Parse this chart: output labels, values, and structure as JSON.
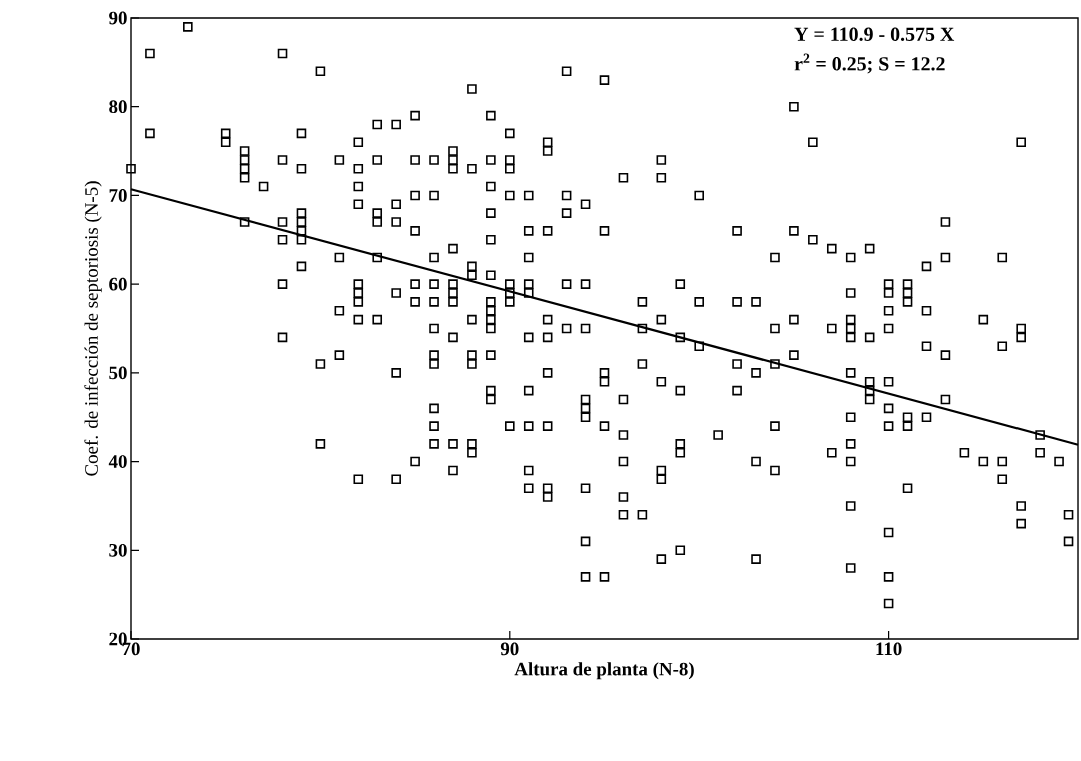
{
  "chart_data": {
    "type": "scatter",
    "xlabel": "Altura de planta (N-8)",
    "ylabel": "Coef. de infección de septoriosis (N-5)",
    "annotations": [
      "Y = 110.9 - 0.575 X",
      "r$^{2}$ = 0.25;    S = 12.2"
    ],
    "xlim": [
      70,
      120
    ],
    "ylim": [
      20,
      90
    ],
    "xticks": [
      70,
      90,
      110
    ],
    "yticks": [
      20,
      30,
      40,
      50,
      60,
      70,
      80,
      90
    ],
    "series": [
      {
        "color": "#000000",
        "marker": "square",
        "x": [
          70,
          71,
          71,
          73,
          75,
          75,
          76,
          76,
          76,
          76,
          76,
          77,
          78,
          78,
          78,
          78,
          78,
          78,
          79,
          79,
          79,
          79,
          79,
          79,
          79,
          80,
          80,
          80,
          81,
          81,
          81,
          81,
          82,
          82,
          82,
          82,
          82,
          82,
          82,
          82,
          82,
          83,
          83,
          83,
          83,
          83,
          83,
          84,
          84,
          84,
          84,
          84,
          84,
          85,
          85,
          85,
          85,
          85,
          85,
          85,
          86,
          86,
          86,
          86,
          86,
          86,
          86,
          86,
          86,
          86,
          86,
          87,
          87,
          87,
          87,
          87,
          87,
          87,
          87,
          87,
          87,
          88,
          88,
          88,
          88,
          88,
          88,
          88,
          88,
          88,
          89,
          89,
          89,
          89,
          89,
          89,
          89,
          89,
          89,
          89,
          89,
          89,
          89,
          90,
          90,
          90,
          90,
          90,
          90,
          90,
          90,
          91,
          91,
          91,
          91,
          91,
          91,
          91,
          91,
          91,
          91,
          92,
          92,
          92,
          92,
          92,
          92,
          92,
          92,
          92,
          93,
          93,
          93,
          93,
          93,
          94,
          94,
          94,
          94,
          94,
          94,
          94,
          94,
          94,
          95,
          95,
          95,
          95,
          95,
          95,
          96,
          96,
          96,
          96,
          96,
          96,
          97,
          97,
          97,
          97,
          98,
          98,
          98,
          98,
          98,
          98,
          98,
          99,
          99,
          99,
          99,
          99,
          99,
          100,
          100,
          100,
          101,
          102,
          102,
          102,
          102,
          103,
          103,
          103,
          103,
          104,
          104,
          104,
          104,
          104,
          105,
          105,
          105,
          105,
          106,
          106,
          107,
          107,
          107,
          108,
          108,
          108,
          108,
          108,
          108,
          108,
          108,
          108,
          108,
          108,
          109,
          109,
          109,
          109,
          109,
          110,
          110,
          110,
          110,
          110,
          110,
          110,
          110,
          110,
          110,
          111,
          111,
          111,
          111,
          111,
          111,
          112,
          112,
          112,
          112,
          113,
          113,
          113,
          113,
          114,
          115,
          115,
          116,
          116,
          116,
          116,
          117,
          117,
          117,
          117,
          117,
          118,
          118,
          119,
          119.5,
          119.5
        ],
        "values": [
          73,
          86,
          77,
          89,
          77,
          76,
          75,
          74,
          73,
          72,
          67,
          71,
          86,
          74,
          67,
          65,
          60,
          54,
          77,
          73,
          68,
          67,
          66,
          65,
          62,
          84,
          51,
          42,
          74,
          63,
          57,
          52,
          76,
          73,
          71,
          69,
          60,
          59,
          58,
          56,
          38,
          78,
          74,
          68,
          67,
          63,
          56,
          78,
          69,
          67,
          59,
          50,
          38,
          79,
          74,
          70,
          66,
          60,
          58,
          40,
          74,
          70,
          63,
          60,
          58,
          55,
          52,
          51,
          46,
          44,
          42,
          75,
          74,
          73,
          64,
          60,
          59,
          58,
          54,
          42,
          39,
          82,
          73,
          62,
          61,
          56,
          52,
          51,
          42,
          41,
          79,
          74,
          71,
          68,
          65,
          61,
          58,
          57,
          56,
          55,
          52,
          48,
          47,
          77,
          74,
          73,
          70,
          60,
          59,
          58,
          44,
          70,
          66,
          63,
          60,
          59,
          54,
          48,
          44,
          39,
          37,
          76,
          75,
          66,
          56,
          54,
          50,
          44,
          37,
          36,
          84,
          70,
          68,
          60,
          55,
          69,
          60,
          55,
          47,
          46,
          45,
          37,
          31,
          27,
          83,
          66,
          50,
          49,
          44,
          27,
          72,
          47,
          43,
          40,
          36,
          34,
          58,
          55,
          51,
          34,
          74,
          72,
          56,
          49,
          39,
          38,
          29,
          60,
          54,
          48,
          42,
          41,
          30,
          70,
          58,
          53,
          43,
          66,
          58,
          51,
          48,
          58,
          50,
          40,
          29,
          63,
          55,
          51,
          44,
          39,
          80,
          66,
          56,
          52,
          76,
          65,
          64,
          55,
          41,
          63,
          59,
          56,
          55,
          54,
          50,
          45,
          42,
          40,
          35,
          28,
          64,
          54,
          49,
          48,
          47,
          60,
          59,
          57,
          55,
          49,
          46,
          44,
          32,
          27,
          24,
          60,
          59,
          58,
          45,
          44,
          37,
          62,
          57,
          53,
          45,
          67,
          63,
          52,
          47,
          41,
          56,
          40,
          63,
          53,
          40,
          38,
          76,
          55,
          54,
          35,
          33,
          43,
          41,
          40,
          34,
          31
        ]
      },
      {
        "type": "line",
        "marker": "none",
        "color": "#000000",
        "x": [
          70,
          120
        ],
        "values": [
          70.7,
          41.9
        ]
      }
    ]
  }
}
